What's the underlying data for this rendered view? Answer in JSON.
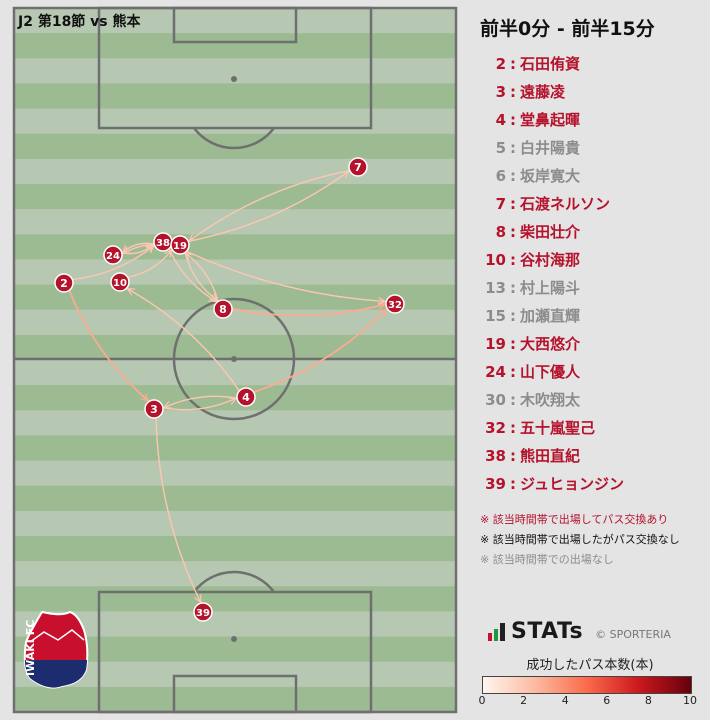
{
  "match": {
    "title": "J2 第18節 vs 熊本"
  },
  "panel": {
    "time_range": "前半0分 - 前半15分",
    "colors": {
      "active": "#b5122c",
      "inactive": "#8c8c8c",
      "node": "#b5122c",
      "pitch_light": "#b7c8b2",
      "pitch_dark": "#9cbb93"
    },
    "players": [
      {
        "number": "2",
        "name": "石田侑資",
        "state": "active"
      },
      {
        "number": "3",
        "name": "遠藤凌",
        "state": "active"
      },
      {
        "number": "4",
        "name": "堂鼻起暉",
        "state": "active"
      },
      {
        "number": "5",
        "name": "白井陽貴",
        "state": "inactive"
      },
      {
        "number": "6",
        "name": "坂岸寛大",
        "state": "inactive"
      },
      {
        "number": "7",
        "name": "石渡ネルソン",
        "state": "active"
      },
      {
        "number": "8",
        "name": "柴田壮介",
        "state": "active"
      },
      {
        "number": "10",
        "name": "谷村海那",
        "state": "active"
      },
      {
        "number": "13",
        "name": "村上陽斗",
        "state": "inactive"
      },
      {
        "number": "15",
        "name": "加瀬直輝",
        "state": "inactive"
      },
      {
        "number": "19",
        "name": "大西悠介",
        "state": "active"
      },
      {
        "number": "24",
        "name": "山下優人",
        "state": "active"
      },
      {
        "number": "30",
        "name": "木吹翔太",
        "state": "inactive"
      },
      {
        "number": "32",
        "name": "五十嵐聖己",
        "state": "active"
      },
      {
        "number": "38",
        "name": "熊田直紀",
        "state": "active"
      },
      {
        "number": "39",
        "name": "ジュヒョンジン",
        "state": "active"
      }
    ],
    "notes": {
      "active": "※ 該当時間帯で出場してパス交換あり",
      "no_pass": "※ 該当時間帯で出場したがパス交換なし",
      "bench": "※ 該当時間帯での出場なし"
    },
    "brand": {
      "name": "STATs",
      "copyright": "© SPORTERIA"
    },
    "legend": {
      "title": "成功したパス本数(本)",
      "min": 0,
      "max": 10,
      "ticks": [
        "0",
        "2",
        "4",
        "6",
        "8",
        "10"
      ]
    }
  },
  "team_logo": {
    "icon": "iwaki-fc-crest",
    "text": "IWAKI FC"
  },
  "network": {
    "nodes": [
      {
        "id": "7",
        "label": "7"
      },
      {
        "id": "38",
        "label": "38"
      },
      {
        "id": "19",
        "label": "19"
      },
      {
        "id": "24",
        "label": "24"
      },
      {
        "id": "2",
        "label": "2"
      },
      {
        "id": "10",
        "label": "10"
      },
      {
        "id": "8",
        "label": "8"
      },
      {
        "id": "32",
        "label": "32"
      },
      {
        "id": "4",
        "label": "4"
      },
      {
        "id": "3",
        "label": "3"
      },
      {
        "id": "39",
        "label": "39"
      }
    ],
    "passes": [
      {
        "from": "19",
        "to": "7",
        "count": 1
      },
      {
        "from": "7",
        "to": "19",
        "count": 1
      },
      {
        "from": "2",
        "to": "38",
        "count": 1
      },
      {
        "from": "24",
        "to": "38",
        "count": 1
      },
      {
        "from": "38",
        "to": "24",
        "count": 1
      },
      {
        "from": "10",
        "to": "19",
        "count": 1
      },
      {
        "from": "19",
        "to": "24",
        "count": 1
      },
      {
        "from": "2",
        "to": "3",
        "count": 2
      },
      {
        "from": "3",
        "to": "4",
        "count": 1
      },
      {
        "from": "4",
        "to": "3",
        "count": 1
      },
      {
        "from": "4",
        "to": "32",
        "count": 2
      },
      {
        "from": "8",
        "to": "32",
        "count": 2
      },
      {
        "from": "38",
        "to": "32",
        "count": 1
      },
      {
        "from": "4",
        "to": "10",
        "count": 1
      },
      {
        "from": "19",
        "to": "8",
        "count": 1
      },
      {
        "from": "8",
        "to": "19",
        "count": 1
      },
      {
        "from": "38",
        "to": "8",
        "count": 1
      },
      {
        "from": "3",
        "to": "39",
        "count": 1
      }
    ]
  }
}
